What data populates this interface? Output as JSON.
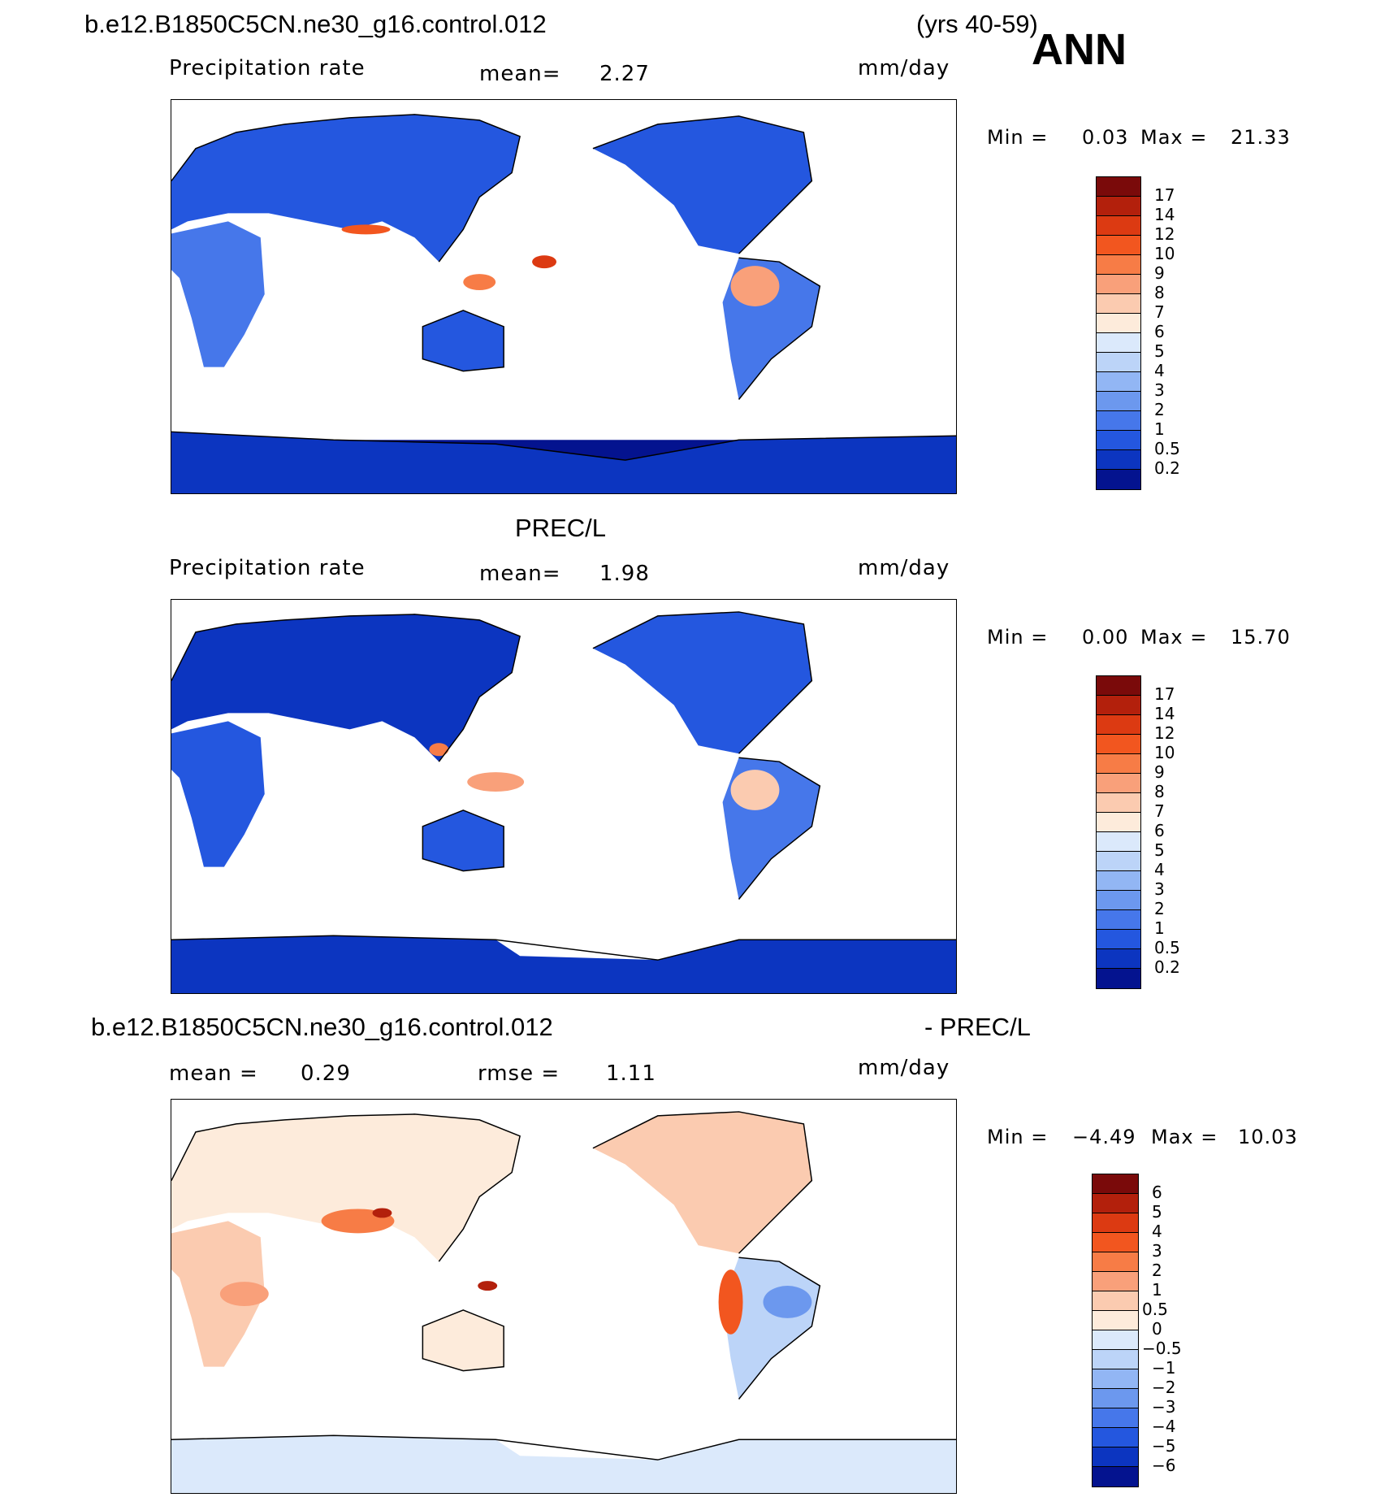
{
  "header": {
    "case_name": "b.e12.B1850C5CN.ne30_g16.control.012",
    "years": "(yrs 40-59)",
    "season": "ANN"
  },
  "panels": [
    {
      "id": "model",
      "variable": "Precipitation rate",
      "stat1_label": "mean=",
      "stat1_value": "2.27",
      "units": "mm/day",
      "min_label": "Min =",
      "min_value": "0.03",
      "max_label": "Max =",
      "max_value": "21.33"
    },
    {
      "id": "obs",
      "dataset_title": "PREC/L",
      "variable": "Precipitation rate",
      "stat1_label": "mean=",
      "stat1_value": "1.98",
      "units": "mm/day",
      "min_label": "Min =",
      "min_value": "0.00",
      "max_label": "Max =",
      "max_value": "15.70"
    },
    {
      "id": "diff",
      "title_left": "b.e12.B1850C5CN.ne30_g16.control.012",
      "title_right": "- PREC/L",
      "stat1_label": "mean =",
      "stat1_value": "0.29",
      "stat2_label": "rmse =",
      "stat2_value": "1.11",
      "units": "mm/day",
      "min_label": "Min =",
      "min_value": "−4.49",
      "max_label": "Max =",
      "max_value": "10.03"
    }
  ],
  "colorbars": {
    "precip": {
      "ticks": [
        "17",
        "14",
        "12",
        "10",
        "9",
        "8",
        "7",
        "6",
        "5",
        "4",
        "3",
        "2",
        "1",
        "0.5",
        "0.2"
      ],
      "colors": [
        "#7a0a0a",
        "#b3200c",
        "#dc3a12",
        "#f2561f",
        "#f77c46",
        "#f9a07a",
        "#fbcbb0",
        "#fdebdb",
        "#dbe9fb",
        "#bcd4f8",
        "#92b6f4",
        "#6c98ee",
        "#4677ea",
        "#2457df",
        "#0c35c0",
        "#04138f"
      ]
    },
    "diff": {
      "ticks": [
        "6",
        "5",
        "4",
        "3",
        "2",
        "1",
        "0.5",
        "0",
        "−0.5",
        "−1",
        "−2",
        "−3",
        "−4",
        "−5",
        "−6"
      ],
      "colors": [
        "#7a0a0a",
        "#b3200c",
        "#dc3a12",
        "#f2561f",
        "#f77c46",
        "#f9a07a",
        "#fbcbb0",
        "#fdebdb",
        "#dbe9fb",
        "#bcd4f8",
        "#92b6f4",
        "#6c98ee",
        "#4677ea",
        "#2457df",
        "#0c35c0",
        "#04138f"
      ]
    }
  },
  "chart_data": [
    {
      "type": "heatmap",
      "title": "Precipitation rate",
      "units": "mm/day",
      "mean": 2.27,
      "min": 0.03,
      "max": 21.33,
      "color_levels": [
        0.2,
        0.5,
        1,
        2,
        3,
        4,
        5,
        6,
        7,
        8,
        9,
        10,
        12,
        14,
        17
      ],
      "grid": false
    },
    {
      "type": "heatmap",
      "title": "PREC/L",
      "units": "mm/day",
      "mean": 1.98,
      "min": 0.0,
      "max": 15.7,
      "color_levels": [
        0.2,
        0.5,
        1,
        2,
        3,
        4,
        5,
        6,
        7,
        8,
        9,
        10,
        12,
        14,
        17
      ],
      "grid": false
    },
    {
      "type": "heatmap",
      "title": "b.e12.B1850C5CN.ne30_g16.control.012 - PREC/L",
      "units": "mm/day",
      "mean": 0.29,
      "rmse": 1.11,
      "min": -4.49,
      "max": 10.03,
      "color_levels": [
        -6,
        -5,
        -4,
        -3,
        -2,
        -1,
        -0.5,
        0,
        0.5,
        1,
        2,
        3,
        4,
        5,
        6
      ],
      "grid": false
    }
  ]
}
